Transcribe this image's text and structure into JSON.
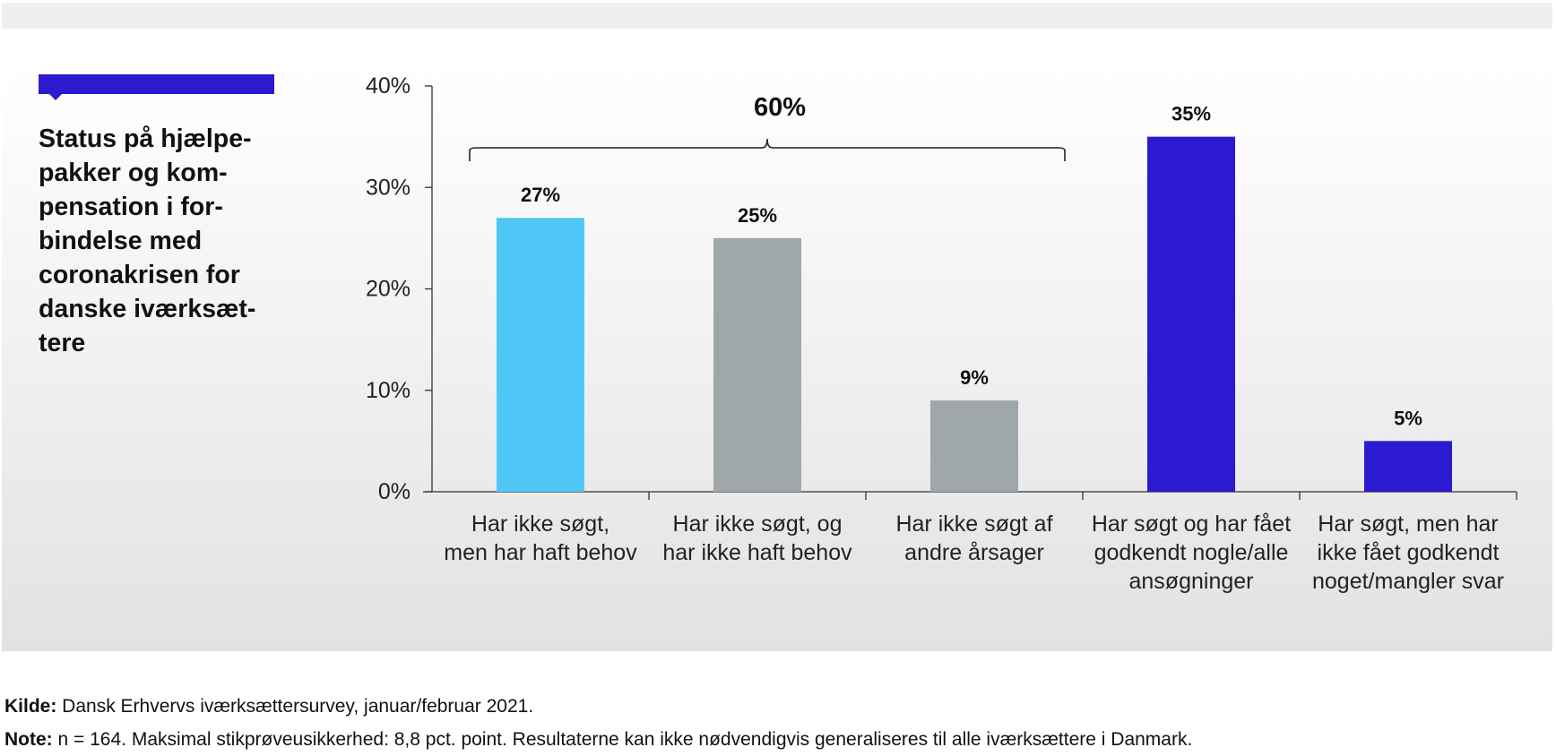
{
  "chart_data": {
    "type": "bar",
    "title": "Status på hjælpe-\npakker og kom-\npensation i for-\nbindelse med\ncoronakrisen for\ndanske iværksæt-\ntere",
    "categories": [
      [
        "Har ikke søgt,",
        "men har haft behov"
      ],
      [
        "Har ikke søgt, og",
        "har ikke haft behov"
      ],
      [
        "Har ikke søgt af",
        "andre årsager"
      ],
      [
        "Har søgt og har fået",
        "godkendt nogle/alle",
        "ansøgninger"
      ],
      [
        "Har søgt, men har",
        "ikke fået godkendt",
        "noget/mangler svar"
      ]
    ],
    "values": [
      27,
      25,
      9,
      35,
      5
    ],
    "data_labels": [
      "27%",
      "25%",
      "9%",
      "35%",
      "5%"
    ],
    "colors": [
      "#4fc8f8",
      "#a0a7aa",
      "#a0a7aa",
      "#2c1ad0",
      "#2c1ad0"
    ],
    "ylim": [
      0,
      40
    ],
    "yticks": [
      0,
      10,
      20,
      30,
      40
    ],
    "ytick_labels": [
      "0%",
      "10%",
      "20%",
      "30%",
      "40%"
    ],
    "xlabel": "",
    "ylabel": "",
    "annotations": [
      {
        "text": "60%",
        "spans_categories": [
          0,
          2
        ],
        "type": "brace"
      }
    ]
  },
  "footer": {
    "source_label": "Kilde:",
    "source_text": " Dansk Erhvervs iværksættersurvey, januar/februar 2021.",
    "note_label": "Note:",
    "note_text": " n = 164. Maksimal stikprøveusikkerhed: 8,8 pct. point. Resultaterne kan ikke nødvendigvis generaliseres til alle iværksættere i Danmark."
  },
  "colors": {
    "accent": "#2c1ad0",
    "light_blue": "#4fc8f8",
    "grey": "#a0a7aa"
  }
}
